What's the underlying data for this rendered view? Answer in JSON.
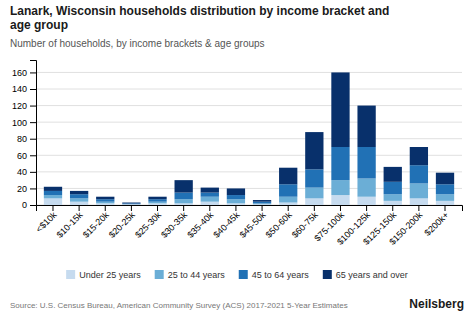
{
  "chart_data": {
    "type": "bar",
    "title": "Lanark, Wisconsin households distribution by income bracket and\nage group",
    "subtitle": "Number of households, by income brackets & age groups",
    "annotations": [
      "Source: U.S. Census Bureau, American Community Survey (ACS) 2017-2021 5-Year Estimates",
      "Neilsberg"
    ],
    "categories": [
      "<$10k",
      "$10-15k",
      "$15-20k",
      "$20-25k",
      "$25-30k",
      "$30-35k",
      "$35-40k",
      "$40-45k",
      "$45-50k",
      "$50-60k",
      "$60-75k",
      "$75-100k",
      "$100-125k",
      "$125-150k",
      "$150-200k",
      "$200k+"
    ],
    "series": [
      {
        "name": "Under 25 years",
        "color": "#c6dbef",
        "values": [
          8,
          4,
          2,
          1,
          2,
          2,
          4,
          2,
          1,
          3,
          8,
          12,
          10,
          5,
          8,
          5
        ]
      },
      {
        "name": "25 to 44 years",
        "color": "#6baed6",
        "values": [
          4,
          4,
          2,
          0,
          2,
          5,
          6,
          5,
          1,
          7,
          13,
          18,
          22,
          8,
          18,
          8
        ]
      },
      {
        "name": "45 to 64 years",
        "color": "#2171b5",
        "values": [
          5,
          5,
          3,
          1,
          3,
          8,
          5,
          5,
          2,
          15,
          22,
          40,
          38,
          15,
          22,
          12
        ]
      },
      {
        "name": "65 years and over",
        "color": "#08306b",
        "values": [
          5,
          4,
          3,
          1,
          3,
          15,
          6,
          8,
          2,
          20,
          45,
          90,
          50,
          18,
          22,
          14
        ]
      }
    ],
    "stacked": true,
    "ylim": [
      0,
      175
    ],
    "yticks": [
      0,
      20,
      40,
      60,
      80,
      100,
      120,
      140,
      160
    ],
    "grid": true
  }
}
